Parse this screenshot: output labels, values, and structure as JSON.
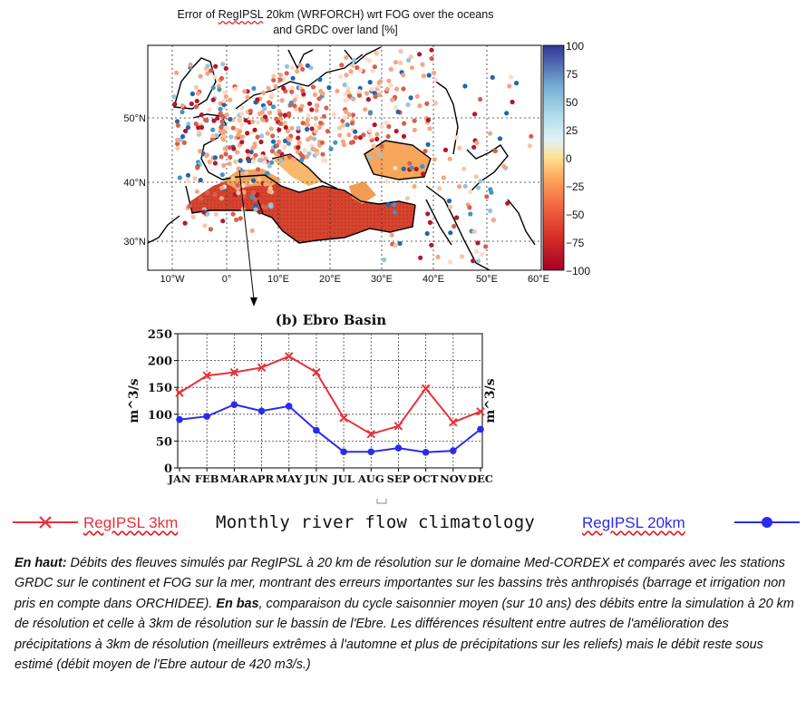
{
  "map": {
    "title_line1_prefix": "Error of ",
    "title_line1_model": "RegIPSL",
    "title_line1_suffix": " 20km (WRFORCH) wrt FOG over the oceans",
    "title_line2": "and GRDC over land [%]",
    "lon_ticks": [
      "10°W",
      "0°",
      "10°E",
      "20°E",
      "30°E",
      "40°E",
      "50°E",
      "60°E"
    ],
    "lat_ticks": [
      "50°N",
      "40°N",
      "30°N"
    ],
    "colorbar_ticks": [
      "100",
      "75",
      "50",
      "25",
      "0",
      "−25",
      "−50",
      "−75",
      "−100"
    ],
    "colors": {
      "strong_negative": "#b2182b",
      "negative": "#ef8a62",
      "neutral": "#fddbc7",
      "positive": "#67a9cf",
      "strong_positive": "#2166ac"
    }
  },
  "chart_data": {
    "type": "line",
    "title": "(b) Ebro Basin",
    "ylabel": "m^3/s",
    "categories": [
      "JAN",
      "FEB",
      "MAR",
      "APR",
      "MAY",
      "JUN",
      "JUL",
      "AUG",
      "SEP",
      "OCT",
      "NOV",
      "DEC"
    ],
    "ylim": [
      0,
      250
    ],
    "yticks": [
      "0",
      "50",
      "100",
      "150",
      "200",
      "250"
    ],
    "grid": true,
    "series": [
      {
        "name": "RegIPSL 3km",
        "color": "#e8303a",
        "marker": "x",
        "values": [
          140,
          172,
          178,
          187,
          208,
          178,
          93,
          63,
          78,
          148,
          85,
          105
        ]
      },
      {
        "name": "RegIPSL 20km",
        "color": "#2b2bea",
        "marker": "circle",
        "values": [
          90,
          96,
          118,
          106,
          115,
          70,
          30,
          30,
          37,
          29,
          32,
          72
        ]
      }
    ]
  },
  "legend": {
    "series1_label": "RegIPSL 3km",
    "series2_label": "RegIPSL 20km",
    "title": "Monthly river flow climatology"
  },
  "caption": {
    "part1_bold": "En haut:",
    "part1": " Débits des fleuves simulés par RegIPSL à 20 km de résolution sur le domaine Med-CORDEX et comparés avec les stations GRDC sur le continent et FOG sur la mer, montrant des erreurs importantes sur les bassins très anthropisés (barrage et irrigation non pris en compte dans ORCHIDEE). ",
    "part2_bold": "En bas",
    "part2": ", comparaison du cycle saisonnier moyen (sur 10 ans) des débits entre la simulation à 20 km de résolution et celle à 3km de résolution sur le bassin de l'Ebre. Les différences résultent entre autres de l'amélioration des précipitations à 3km de résolution (meilleurs extrêmes à l'automne et plus de précipitations sur les reliefs) mais le débit reste sous estimé (débit moyen de l'Ebre autour de 420 m3/s.)"
  }
}
